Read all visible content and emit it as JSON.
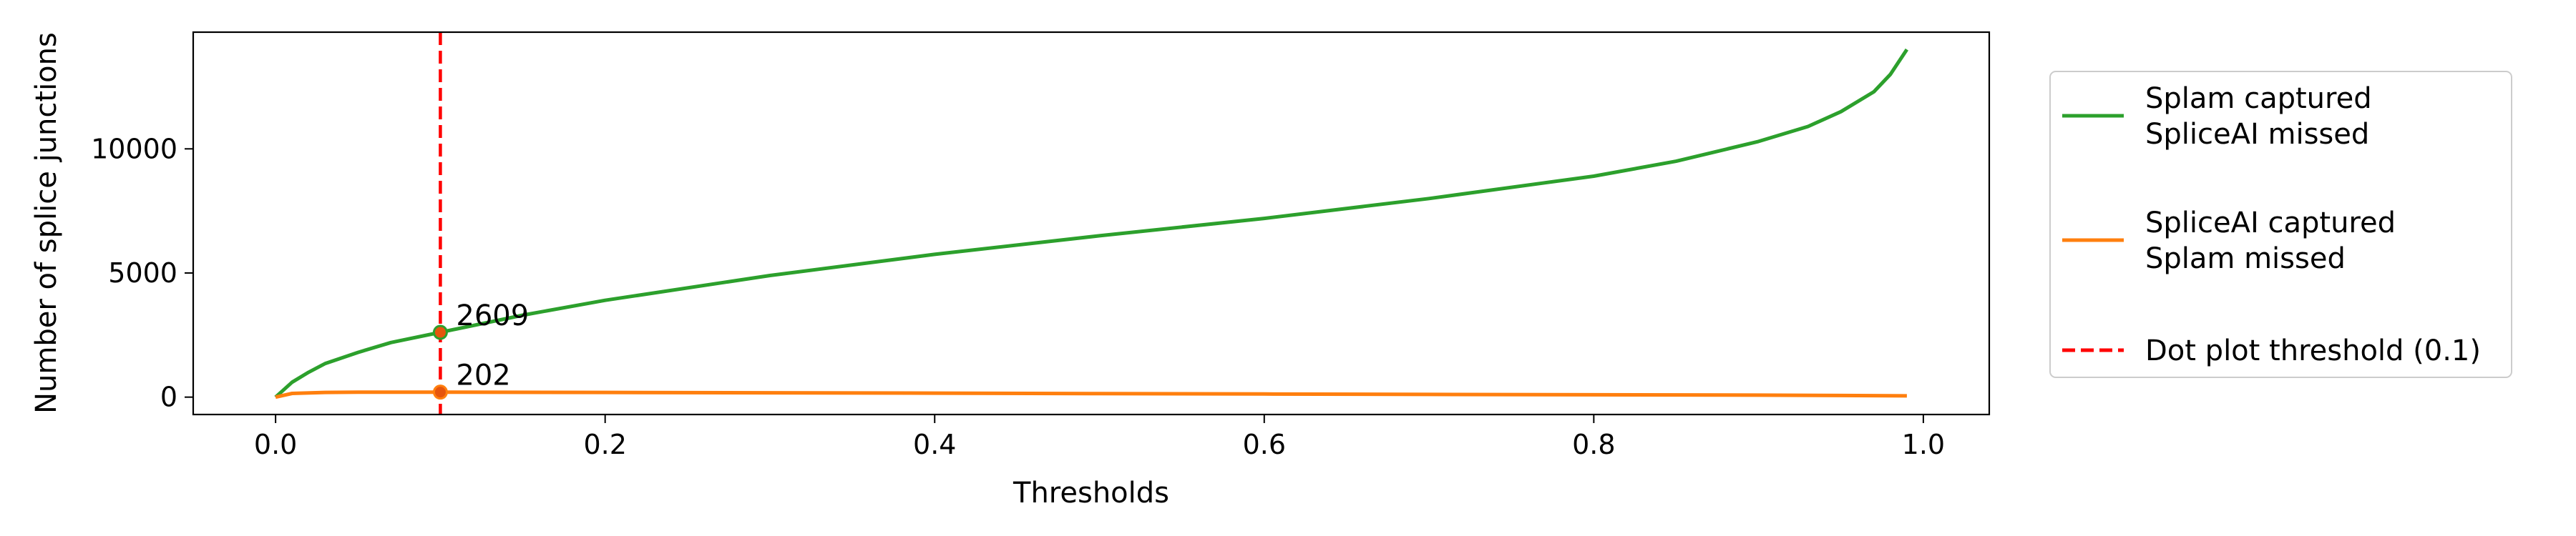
{
  "chart_data": {
    "type": "line",
    "title": "",
    "xlabel": "Thresholds",
    "ylabel": "Number of splice junctions",
    "xlim": [
      -0.05,
      1.04
    ],
    "ylim": [
      -700,
      14700
    ],
    "xticks": [
      0.0,
      0.2,
      0.4,
      0.6,
      0.8,
      1.0
    ],
    "xtick_labels": [
      "0.0",
      "0.2",
      "0.4",
      "0.6",
      "0.8",
      "1.0"
    ],
    "yticks": [
      0,
      5000,
      10000
    ],
    "ytick_labels": [
      "0",
      "5000",
      "10000"
    ],
    "grid": false,
    "legend_position": "outside-right",
    "series": [
      {
        "name": "Splam captured\nSpliceAI missed",
        "color": "#2ca02c",
        "linestyle": "solid",
        "x": [
          0.0,
          0.01,
          0.02,
          0.03,
          0.05,
          0.07,
          0.1,
          0.15,
          0.2,
          0.3,
          0.4,
          0.5,
          0.6,
          0.7,
          0.8,
          0.85,
          0.9,
          0.93,
          0.95,
          0.97,
          0.98,
          0.99
        ],
        "y": [
          0,
          600,
          1000,
          1350,
          1800,
          2200,
          2609,
          3300,
          3900,
          4900,
          5750,
          6500,
          7200,
          8000,
          8900,
          9500,
          10300,
          10900,
          11500,
          12300,
          13000,
          14000
        ]
      },
      {
        "name": "SpliceAI captured\nSplam missed",
        "color": "#ff7f0e",
        "linestyle": "solid",
        "x": [
          0.0,
          0.01,
          0.03,
          0.05,
          0.1,
          0.2,
          0.3,
          0.4,
          0.5,
          0.6,
          0.7,
          0.8,
          0.9,
          0.95,
          0.99
        ],
        "y": [
          0,
          150,
          190,
          200,
          202,
          190,
          175,
          160,
          140,
          125,
          110,
          95,
          80,
          65,
          50
        ]
      },
      {
        "name": "Dot plot threshold (0.1)",
        "color": "#ff0000",
        "linestyle": "dashed",
        "vline_x": 0.1
      }
    ],
    "annotations": [
      {
        "text": "2609",
        "x": 0.1,
        "y": 2609,
        "color": "#2ca02c"
      },
      {
        "text": "202",
        "x": 0.1,
        "y": 202,
        "color": "#ff7f0e"
      }
    ]
  }
}
